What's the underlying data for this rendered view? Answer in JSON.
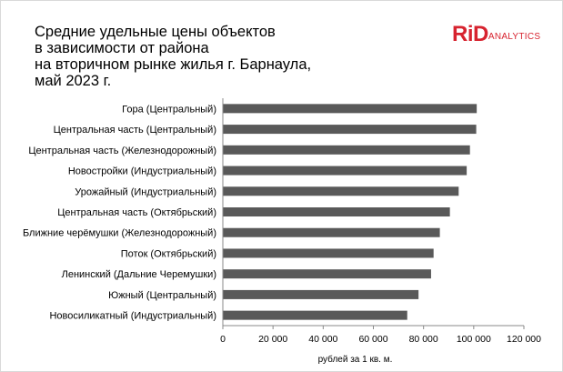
{
  "title_lines": [
    "Средние удельные цены объектов",
    "в зависимости от района",
    "на вторичном рынке жилья г. Барнаула,",
    "май 2023 г."
  ],
  "logo": {
    "text": "RiD",
    "subtext": "ANALYTICS",
    "color": "#d7232f"
  },
  "chart_data": {
    "type": "bar",
    "orientation": "horizontal",
    "categories": [
      "Гора (Центральный)",
      "Центральная часть (Центральный)",
      "Центральная часть (Железнодорожный)",
      "Новостройки (Индустриальный)",
      "Урожайный (Индустриальный)",
      "Центральная часть (Октябрьский)",
      "Ближние черёмушки (Железнодорожный)",
      "Поток (Октябрьский)",
      "Ленинский (Дальние Черемушки)",
      "Южный (Центральный)",
      "Новосиликатный (Индустриальный)"
    ],
    "values": [
      101200,
      101000,
      98500,
      97200,
      94000,
      90500,
      86500,
      84000,
      83000,
      78000,
      73500
    ],
    "xlim": [
      0,
      120000
    ],
    "ticks": [
      0,
      20000,
      40000,
      60000,
      80000,
      100000,
      120000
    ],
    "tick_labels": [
      "0",
      "20 000",
      "40 000",
      "60 000",
      "80 000",
      "100 000",
      "120 000"
    ],
    "xlabel": "рублей за 1 кв. м.",
    "bar_color": "#595959",
    "grid": false
  }
}
